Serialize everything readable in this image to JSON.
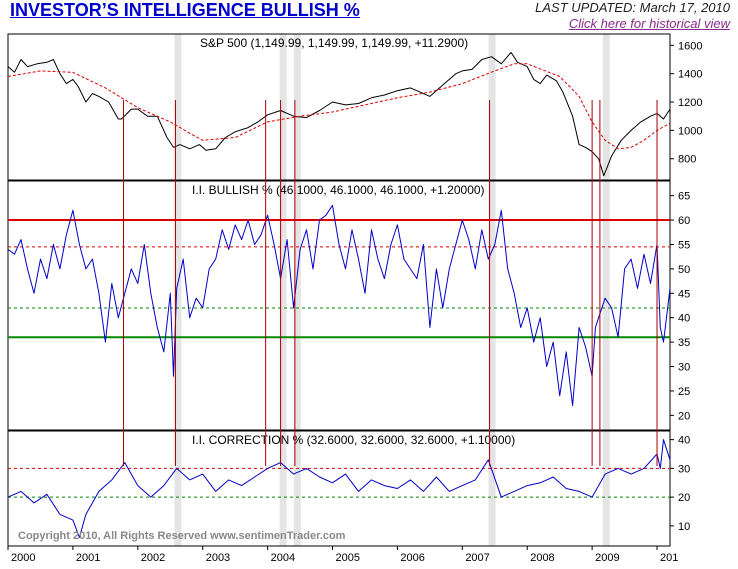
{
  "header": {
    "title": "INVESTOR’S INTELLIGENCE BULLISH %",
    "last_updated": "LAST UPDATED:  March 17, 2010",
    "historical_link": "Click here for historical view"
  },
  "copyright": "Copyright 2010, All Rights Reserved  www.sentimenTrader.com",
  "colors": {
    "price": "#000000",
    "sentiment": "#0000cc",
    "moving_average": "#dd0000",
    "event_line": "#aa0000",
    "event_band": "#d8d8d8",
    "bull_threshold": "#dd0000",
    "bear_threshold": "#008800",
    "band_line_upper": "#dd0000",
    "band_line_lower": "#008800"
  },
  "chart_data": [
    {
      "type": "line",
      "panel": "price",
      "label": "S&P 500 (1,149.99, 1,149.99, 1,149.99, +11.2900)",
      "ylim": [
        650,
        1680
      ],
      "yticks": [
        800,
        1000,
        1200,
        1400,
        1600
      ],
      "x_ticks": [
        "2000",
        "2001",
        "2002",
        "2003",
        "2004",
        "2005",
        "2006",
        "2007",
        "2008",
        "2009",
        "201"
      ],
      "series": [
        {
          "role": "price",
          "x": [
            2000.0,
            2000.1,
            2000.2,
            2000.3,
            2000.45,
            2000.6,
            2000.7,
            2000.8,
            2000.9,
            2001.0,
            2001.08,
            2001.2,
            2001.3,
            2001.4,
            2001.55,
            2001.7,
            2001.75,
            2001.9,
            2002.0,
            2002.15,
            2002.3,
            2002.45,
            2002.55,
            2002.65,
            2002.8,
            2002.95,
            2003.05,
            2003.2,
            2003.35,
            2003.5,
            2003.7,
            2003.85,
            2004.0,
            2004.2,
            2004.4,
            2004.6,
            2004.8,
            2005.0,
            2005.2,
            2005.4,
            2005.6,
            2005.8,
            2006.0,
            2006.2,
            2006.35,
            2006.5,
            2006.7,
            2006.9,
            2007.0,
            2007.15,
            2007.3,
            2007.45,
            2007.6,
            2007.75,
            2007.85,
            2008.0,
            2008.1,
            2008.2,
            2008.3,
            2008.45,
            2008.55,
            2008.7,
            2008.8,
            2008.9,
            2009.0,
            2009.1,
            2009.18,
            2009.3,
            2009.45,
            2009.6,
            2009.75,
            2009.9,
            2010.0,
            2010.1,
            2010.2
          ],
          "y": [
            1450,
            1410,
            1500,
            1450,
            1470,
            1480,
            1500,
            1400,
            1330,
            1360,
            1310,
            1200,
            1260,
            1240,
            1200,
            1080,
            1080,
            1150,
            1150,
            1100,
            1100,
            950,
            880,
            900,
            870,
            900,
            860,
            870,
            950,
            990,
            1020,
            1060,
            1110,
            1140,
            1100,
            1090,
            1140,
            1200,
            1180,
            1190,
            1230,
            1250,
            1280,
            1300,
            1270,
            1240,
            1320,
            1400,
            1420,
            1430,
            1500,
            1520,
            1470,
            1550,
            1480,
            1450,
            1360,
            1330,
            1390,
            1350,
            1270,
            1100,
            900,
            880,
            850,
            800,
            680,
            820,
            930,
            1000,
            1060,
            1100,
            1120,
            1080,
            1150
          ]
        },
        {
          "role": "moving_average",
          "x": [
            2000.0,
            2000.5,
            2001.0,
            2001.5,
            2002.0,
            2002.5,
            2002.8,
            2003.0,
            2003.5,
            2004.0,
            2004.5,
            2005.0,
            2005.5,
            2006.0,
            2006.5,
            2007.0,
            2007.5,
            2007.8,
            2008.0,
            2008.5,
            2008.8,
            2009.0,
            2009.2,
            2009.4,
            2009.6,
            2009.8,
            2010.0,
            2010.2
          ],
          "y": [
            1380,
            1420,
            1410,
            1300,
            1160,
            1060,
            980,
            930,
            950,
            1060,
            1100,
            1130,
            1180,
            1230,
            1270,
            1330,
            1420,
            1470,
            1470,
            1380,
            1240,
            1060,
            930,
            870,
            880,
            930,
            1000,
            1050
          ]
        }
      ]
    },
    {
      "type": "line",
      "panel": "bullish",
      "label": "I.I. BULLISH % (46.1000, 46.1000, 46.1000, +1.20000)",
      "ylim": [
        17,
        68
      ],
      "yticks": [
        20,
        25,
        30,
        35,
        40,
        45,
        50,
        55,
        60,
        65
      ],
      "thresholds": [
        {
          "value": 60,
          "style": "solid",
          "role": "bull_threshold"
        },
        {
          "value": 54.5,
          "style": "dashed",
          "role": "band_line_upper"
        },
        {
          "value": 42,
          "style": "dashed",
          "role": "band_line_lower"
        },
        {
          "value": 36,
          "style": "solid",
          "role": "bear_threshold"
        }
      ],
      "series": [
        {
          "role": "sentiment",
          "x": [
            2000.0,
            2000.1,
            2000.2,
            2000.3,
            2000.4,
            2000.5,
            2000.6,
            2000.7,
            2000.8,
            2000.9,
            2001.0,
            2001.1,
            2001.2,
            2001.3,
            2001.4,
            2001.5,
            2001.6,
            2001.7,
            2001.8,
            2001.9,
            2002.0,
            2002.1,
            2002.2,
            2002.3,
            2002.4,
            2002.5,
            2002.55,
            2002.6,
            2002.7,
            2002.8,
            2002.9,
            2003.0,
            2003.1,
            2003.2,
            2003.3,
            2003.4,
            2003.5,
            2003.6,
            2003.7,
            2003.8,
            2003.9,
            2004.0,
            2004.1,
            2004.2,
            2004.3,
            2004.4,
            2004.5,
            2004.6,
            2004.7,
            2004.8,
            2004.9,
            2005.0,
            2005.1,
            2005.2,
            2005.3,
            2005.4,
            2005.5,
            2005.6,
            2005.7,
            2005.8,
            2005.9,
            2006.0,
            2006.1,
            2006.2,
            2006.3,
            2006.4,
            2006.5,
            2006.6,
            2006.7,
            2006.8,
            2006.9,
            2007.0,
            2007.1,
            2007.2,
            2007.3,
            2007.4,
            2007.5,
            2007.6,
            2007.7,
            2007.8,
            2007.9,
            2008.0,
            2008.1,
            2008.2,
            2008.3,
            2008.4,
            2008.5,
            2008.6,
            2008.7,
            2008.8,
            2008.9,
            2009.0,
            2009.05,
            2009.1,
            2009.2,
            2009.3,
            2009.4,
            2009.5,
            2009.6,
            2009.7,
            2009.8,
            2009.9,
            2010.0,
            2010.05,
            2010.1,
            2010.2
          ],
          "y": [
            54,
            53,
            56,
            50,
            45,
            52,
            48,
            55,
            50,
            57,
            62,
            55,
            50,
            52,
            45,
            35,
            47,
            40,
            45,
            50,
            47,
            55,
            45,
            38,
            33,
            45,
            28,
            46,
            52,
            40,
            44,
            42,
            50,
            52,
            58,
            54,
            59,
            56,
            60,
            55,
            57,
            61,
            55,
            48,
            56,
            42,
            54,
            58,
            50,
            60,
            61,
            63,
            55,
            50,
            58,
            52,
            45,
            58,
            52,
            48,
            55,
            59,
            52,
            50,
            48,
            55,
            38,
            50,
            42,
            50,
            55,
            60,
            56,
            50,
            58,
            52,
            55,
            62,
            50,
            45,
            38,
            42,
            35,
            40,
            30,
            35,
            24,
            33,
            22,
            38,
            34,
            28,
            38,
            40,
            44,
            42,
            36,
            50,
            52,
            46,
            53,
            47,
            55,
            38,
            35,
            46
          ]
        }
      ]
    },
    {
      "type": "line",
      "panel": "correction",
      "label": "I.I. CORRECTION % (32.6000, 32.6000, 32.6000, +1.10000)",
      "ylim": [
        3,
        43
      ],
      "yticks": [
        10,
        20,
        30,
        40
      ],
      "thresholds": [
        {
          "value": 30,
          "style": "dashed",
          "role": "band_line_upper"
        },
        {
          "value": 20,
          "style": "dashed",
          "role": "band_line_lower"
        }
      ],
      "series": [
        {
          "role": "sentiment",
          "x": [
            2000.0,
            2000.2,
            2000.4,
            2000.6,
            2000.8,
            2001.0,
            2001.1,
            2001.2,
            2001.4,
            2001.6,
            2001.8,
            2002.0,
            2002.2,
            2002.4,
            2002.6,
            2002.8,
            2003.0,
            2003.2,
            2003.4,
            2003.6,
            2003.8,
            2004.0,
            2004.2,
            2004.4,
            2004.6,
            2004.8,
            2005.0,
            2005.2,
            2005.4,
            2005.6,
            2005.8,
            2006.0,
            2006.2,
            2006.4,
            2006.6,
            2006.8,
            2007.0,
            2007.2,
            2007.4,
            2007.6,
            2007.8,
            2008.0,
            2008.2,
            2008.4,
            2008.6,
            2008.8,
            2009.0,
            2009.2,
            2009.4,
            2009.6,
            2009.8,
            2010.0,
            2010.05,
            2010.1,
            2010.2
          ],
          "y": [
            20,
            22,
            18,
            21,
            14,
            12,
            6,
            14,
            22,
            26,
            32,
            24,
            20,
            24,
            30,
            26,
            28,
            22,
            26,
            24,
            27,
            30,
            32,
            28,
            30,
            27,
            25,
            28,
            22,
            26,
            24,
            23,
            26,
            22,
            27,
            22,
            24,
            26,
            33,
            20,
            22,
            24,
            25,
            27,
            23,
            22,
            20,
            28,
            30,
            28,
            30,
            35,
            30,
            40,
            33
          ]
        }
      ]
    }
  ],
  "events": {
    "lines": [
      2001.78,
      2002.58,
      2003.97,
      2004.2,
      2004.42,
      2007.42,
      2009.0,
      2009.12,
      2010.0
    ],
    "bands": [
      2002.58,
      2004.2,
      2004.42,
      2007.42,
      2009.18
    ]
  }
}
